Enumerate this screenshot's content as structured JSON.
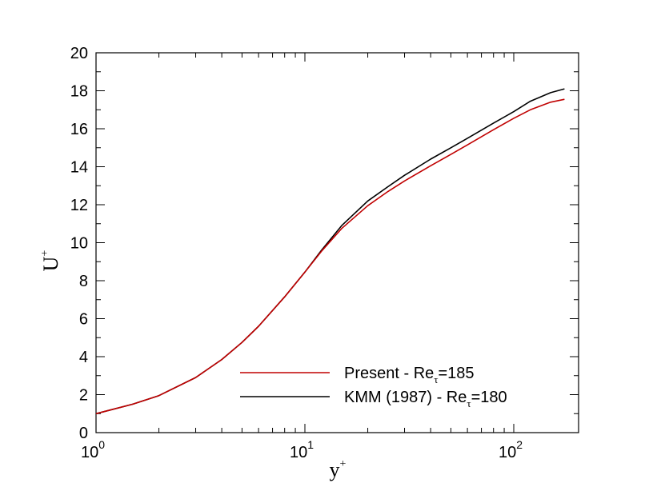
{
  "chart_data": {
    "type": "line",
    "xscale": "log",
    "xlim": [
      1,
      180
    ],
    "ylim": [
      0,
      20
    ],
    "xlabel": {
      "main": "y",
      "sup": "+"
    },
    "ylabel": {
      "main": "U",
      "sup": "+"
    },
    "x_ticks": [
      {
        "base": "10",
        "exp": "0",
        "value": 1
      },
      {
        "base": "10",
        "exp": "1",
        "value": 10
      },
      {
        "base": "10",
        "exp": "2",
        "value": 100
      }
    ],
    "y_ticks": [
      "0",
      "2",
      "4",
      "6",
      "8",
      "10",
      "12",
      "14",
      "16",
      "18",
      "20"
    ],
    "grid": false,
    "legend_position": "bottom-right",
    "series": [
      {
        "name": "Present - Re",
        "name_sub": "τ",
        "name_suffix": "=185",
        "color": "#c00000",
        "x": [
          1,
          1.5,
          2,
          3,
          4,
          5,
          6,
          8,
          10,
          12,
          15,
          20,
          25,
          30,
          40,
          50,
          60,
          80,
          100,
          120,
          150,
          175
        ],
        "y": [
          1.0,
          1.5,
          1.95,
          2.9,
          3.85,
          4.75,
          5.6,
          7.15,
          8.45,
          9.55,
          10.75,
          11.95,
          12.7,
          13.25,
          14.05,
          14.65,
          15.15,
          15.95,
          16.55,
          17.0,
          17.4,
          17.55
        ]
      },
      {
        "name": "KMM (1987) - Re",
        "name_sub": "τ",
        "name_suffix": "=180",
        "color": "#000000",
        "x": [
          1,
          1.5,
          2,
          3,
          4,
          5,
          6,
          8,
          10,
          12,
          15,
          20,
          25,
          30,
          40,
          50,
          60,
          80,
          100,
          120,
          150,
          175
        ],
        "y": [
          1.0,
          1.5,
          1.95,
          2.9,
          3.85,
          4.75,
          5.6,
          7.15,
          8.45,
          9.6,
          10.9,
          12.2,
          12.95,
          13.55,
          14.4,
          15.0,
          15.5,
          16.3,
          16.9,
          17.45,
          17.9,
          18.1
        ]
      }
    ]
  }
}
